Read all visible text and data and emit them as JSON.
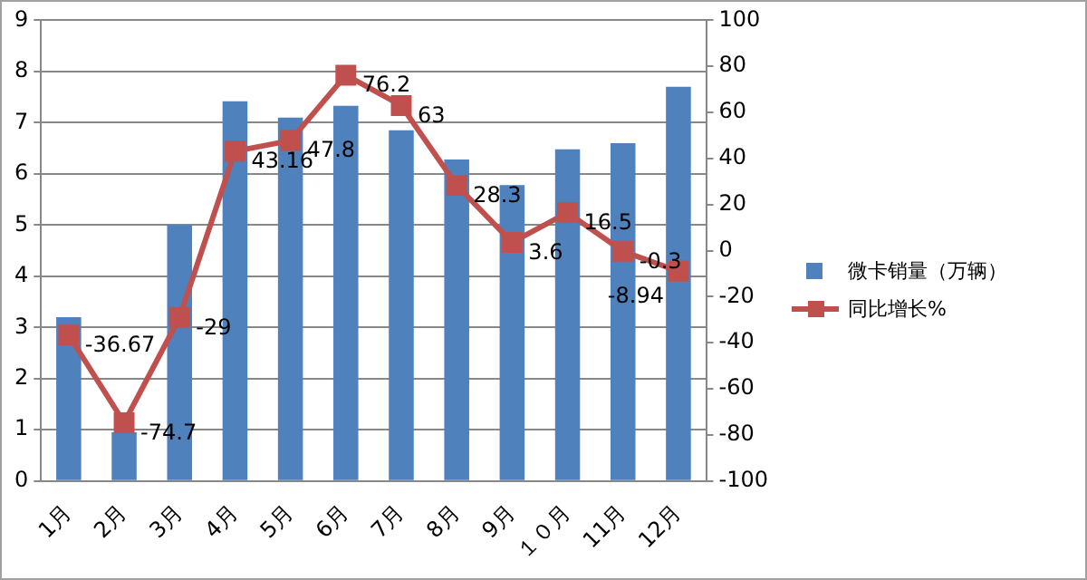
{
  "chart_data": {
    "type": "bar",
    "categories": [
      "1月",
      "2月",
      "3月",
      "4月",
      "5月",
      "6月",
      "7月",
      "8月",
      "9月",
      "１０月",
      "11月",
      "12月"
    ],
    "series": [
      {
        "name": "微卡销量（万辆）",
        "color": "#4f81bd",
        "values": [
          3.2,
          0.95,
          5.0,
          7.42,
          7.1,
          7.33,
          6.85,
          6.28,
          5.78,
          6.48,
          6.6,
          7.7
        ]
      },
      {
        "name": "同比增长%",
        "type": "line",
        "axis": "y2",
        "color": "#c0504d",
        "marker": "square",
        "values": [
          -36.67,
          -74.7,
          -29,
          43.16,
          47.8,
          76.2,
          63,
          28.3,
          3.6,
          16.5,
          -0.3,
          -8.94
        ],
        "value_labels": [
          "-36.67",
          "-74.7",
          "-29",
          "43.16",
          "47.8",
          "76.2",
          "63",
          "28.3",
          "3.6",
          "16.5",
          "-0.3",
          "-8.94"
        ]
      }
    ],
    "ylim": [
      0,
      9
    ],
    "yticks": [
      0,
      1,
      2,
      3,
      4,
      5,
      6,
      7,
      8,
      9
    ],
    "y2lim": [
      -100,
      100
    ],
    "y2ticks": [
      -100,
      -80,
      -60,
      -40,
      -20,
      0,
      20,
      40,
      60,
      80,
      100
    ],
    "grid": "y",
    "legend": "right"
  }
}
